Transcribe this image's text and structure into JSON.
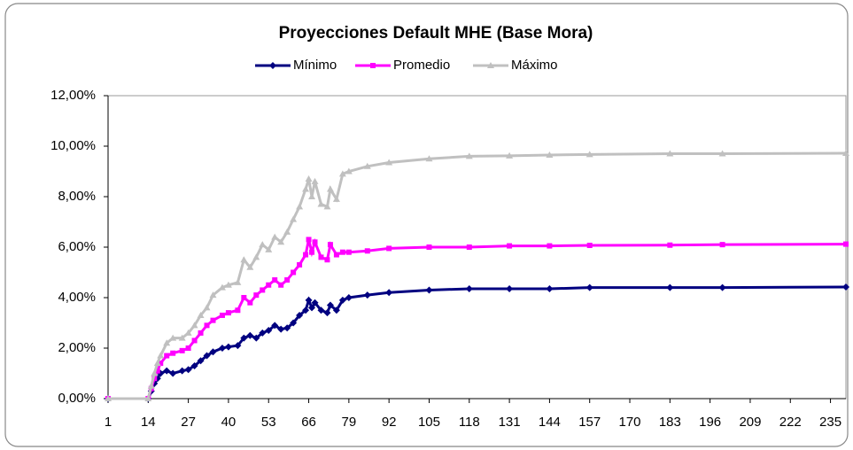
{
  "chart_data": {
    "type": "line",
    "title": "Proyecciones Default  MHE (Base Mora)",
    "x": [
      1,
      14,
      15,
      16,
      17,
      18,
      20,
      22,
      25,
      27,
      29,
      31,
      33,
      35,
      38,
      40,
      43,
      45,
      47,
      49,
      51,
      53,
      55,
      57,
      59,
      61,
      63,
      65,
      66,
      67,
      68,
      70,
      72,
      73,
      75,
      77,
      79,
      85,
      92,
      105,
      118,
      131,
      144,
      157,
      183,
      200,
      240
    ],
    "series": [
      {
        "name": "Mínimo",
        "color": "#000080",
        "marker": "diamond",
        "values": [
          0,
          0,
          0.3,
          0.6,
          0.8,
          1.0,
          1.1,
          1.0,
          1.1,
          1.15,
          1.3,
          1.5,
          1.7,
          1.85,
          2.0,
          2.05,
          2.1,
          2.4,
          2.5,
          2.4,
          2.6,
          2.7,
          2.9,
          2.75,
          2.8,
          3.0,
          3.3,
          3.5,
          3.9,
          3.6,
          3.8,
          3.5,
          3.4,
          3.7,
          3.5,
          3.9,
          4.0,
          4.1,
          4.2,
          4.3,
          4.35,
          4.35,
          4.35,
          4.4,
          4.4,
          4.4,
          4.42
        ]
      },
      {
        "name": "Promedio",
        "color": "#ff00ff",
        "marker": "square",
        "values": [
          0,
          0,
          0.4,
          0.8,
          1.1,
          1.4,
          1.7,
          1.8,
          1.9,
          2.0,
          2.3,
          2.6,
          2.9,
          3.1,
          3.3,
          3.4,
          3.5,
          4.0,
          3.8,
          4.1,
          4.3,
          4.5,
          4.7,
          4.5,
          4.7,
          5.0,
          5.3,
          5.7,
          6.3,
          5.8,
          6.2,
          5.6,
          5.5,
          6.1,
          5.7,
          5.8,
          5.8,
          5.85,
          5.95,
          6.0,
          6.0,
          6.05,
          6.05,
          6.07,
          6.08,
          6.1,
          6.12
        ]
      },
      {
        "name": "Máximo",
        "color": "#c0c0c0",
        "marker": "triangle",
        "values": [
          0,
          0,
          0.5,
          1.0,
          1.4,
          1.7,
          2.2,
          2.4,
          2.4,
          2.6,
          2.9,
          3.3,
          3.6,
          4.1,
          4.4,
          4.5,
          4.6,
          5.5,
          5.2,
          5.6,
          6.1,
          5.9,
          6.4,
          6.2,
          6.6,
          7.1,
          7.6,
          8.3,
          8.7,
          8.0,
          8.6,
          7.7,
          7.6,
          8.3,
          7.9,
          8.9,
          9.0,
          9.2,
          9.35,
          9.5,
          9.6,
          9.62,
          9.65,
          9.67,
          9.7,
          9.7,
          9.72
        ]
      }
    ],
    "xlim": [
      1,
      240
    ],
    "xticks": [
      1,
      14,
      27,
      40,
      53,
      66,
      79,
      92,
      105,
      118,
      131,
      144,
      157,
      170,
      183,
      196,
      209,
      222,
      235
    ],
    "ylim": [
      0,
      12
    ],
    "yticks": [
      {
        "value": 0,
        "label": "0,00%"
      },
      {
        "value": 2,
        "label": "2,00%"
      },
      {
        "value": 4,
        "label": "4,00%"
      },
      {
        "value": 6,
        "label": "6,00%"
      },
      {
        "value": 8,
        "label": "8,00%"
      },
      {
        "value": 10,
        "label": "10,00%"
      },
      {
        "value": 12,
        "label": "12,00%"
      }
    ],
    "grid": false,
    "legend": "top"
  }
}
